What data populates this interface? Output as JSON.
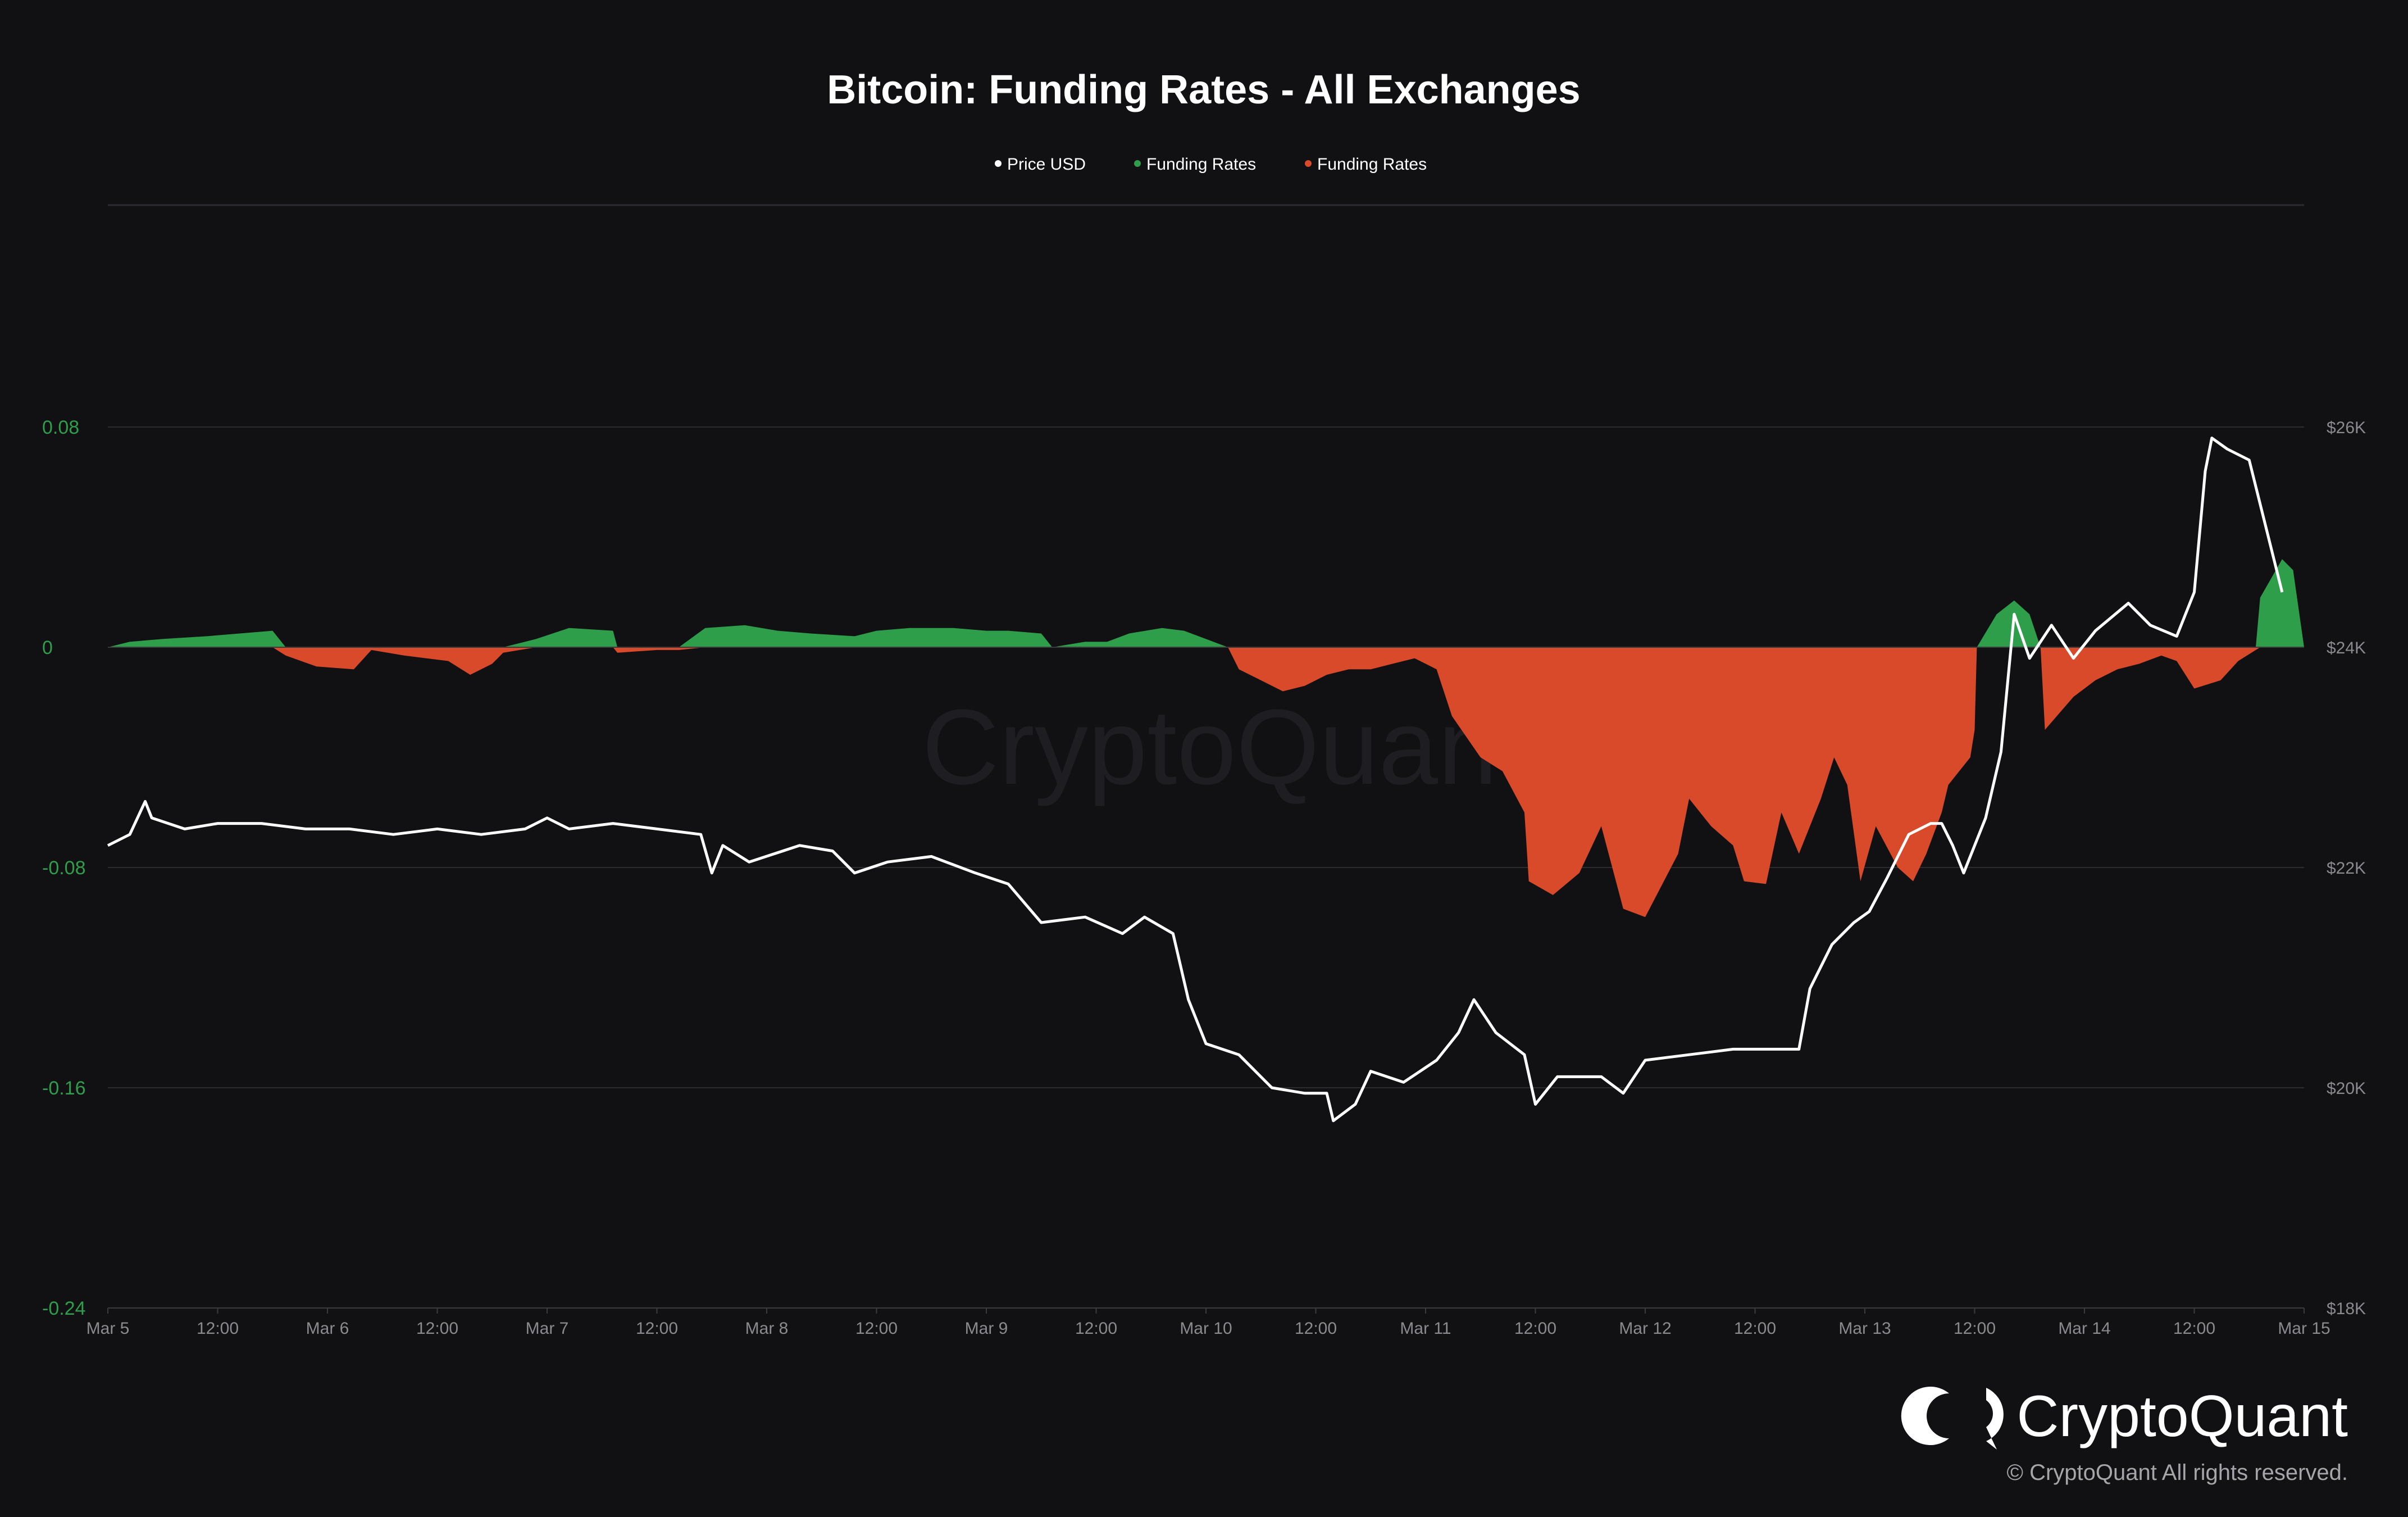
{
  "chart_data": {
    "type": "area",
    "title": "Bitcoin: Funding Rates - All Exchanges",
    "legend": {
      "placement": "top-center",
      "items": [
        {
          "label": "Price USD",
          "color": "#ffffff"
        },
        {
          "label": "Funding Rates",
          "color": "#2f9e4a"
        },
        {
          "label": "Funding Rates",
          "color": "#d94a2a"
        }
      ]
    },
    "x_ticks": [
      "Mar 5",
      "12:00",
      "Mar 6",
      "12:00",
      "Mar 7",
      "12:00",
      "Mar 8",
      "12:00",
      "Mar 9",
      "12:00",
      "Mar 10",
      "12:00",
      "Mar 11",
      "12:00",
      "Mar 12",
      "12:00",
      "Mar 13",
      "12:00",
      "Mar 14",
      "12:00",
      "Mar 15"
    ],
    "xlim_days": [
      5,
      15
    ],
    "y_left": {
      "ticks": [
        "0.08",
        "0",
        "-0.08",
        "-0.16",
        "-0.24"
      ],
      "values": [
        0.08,
        0,
        -0.08,
        -0.16,
        -0.24
      ],
      "ylim": [
        -0.24,
        0.08
      ],
      "color": "#2f9e4a"
    },
    "y_right": {
      "ticks": [
        "$26K",
        "$24K",
        "$22K",
        "$20K",
        "$18K"
      ],
      "values": [
        26000,
        24000,
        22000,
        20000,
        18000
      ],
      "ylim": [
        18000,
        26000
      ]
    },
    "grid": true,
    "colors": {
      "positive": "#2f9e4a",
      "negative": "#d94a2a",
      "price": "#ffffff",
      "background": "#111114",
      "grid": "#2c2c30"
    },
    "series": [
      {
        "name": "Funding Rates",
        "axis": "left",
        "points": [
          [
            5.0,
            0.0
          ],
          [
            5.1,
            0.002
          ],
          [
            5.25,
            0.003
          ],
          [
            5.45,
            0.004
          ],
          [
            5.6,
            0.005
          ],
          [
            5.75,
            0.006
          ],
          [
            5.81,
            -0.003
          ],
          [
            5.95,
            -0.007
          ],
          [
            6.12,
            -0.008
          ],
          [
            6.2,
            -0.001
          ],
          [
            6.35,
            -0.003
          ],
          [
            6.55,
            -0.005
          ],
          [
            6.65,
            -0.01
          ],
          [
            6.75,
            -0.006
          ],
          [
            6.8,
            -0.002
          ],
          [
            6.95,
            0.003
          ],
          [
            7.1,
            0.007
          ],
          [
            7.3,
            0.006
          ],
          [
            7.32,
            -0.002
          ],
          [
            7.5,
            -0.001
          ],
          [
            7.6,
            -0.001
          ],
          [
            7.72,
            0.007
          ],
          [
            7.9,
            0.008
          ],
          [
            8.05,
            0.006
          ],
          [
            8.2,
            0.005
          ],
          [
            8.4,
            0.004
          ],
          [
            8.5,
            0.006
          ],
          [
            8.65,
            0.007
          ],
          [
            8.85,
            0.007
          ],
          [
            9.0,
            0.006
          ],
          [
            9.1,
            0.006
          ],
          [
            9.25,
            0.005
          ],
          [
            9.3,
            0.0
          ],
          [
            9.45,
            0.002
          ],
          [
            9.55,
            0.002
          ],
          [
            9.65,
            0.005
          ],
          [
            9.8,
            0.007
          ],
          [
            9.9,
            0.006
          ],
          [
            10.1,
            0.0
          ],
          [
            10.15,
            -0.008
          ],
          [
            10.25,
            -0.012
          ],
          [
            10.35,
            -0.016
          ],
          [
            10.45,
            -0.014
          ],
          [
            10.55,
            -0.01
          ],
          [
            10.65,
            -0.008
          ],
          [
            10.75,
            -0.008
          ],
          [
            10.85,
            -0.006
          ],
          [
            10.95,
            -0.004
          ],
          [
            11.05,
            -0.008
          ],
          [
            11.12,
            -0.025
          ],
          [
            11.25,
            -0.04
          ],
          [
            11.35,
            -0.045
          ],
          [
            11.45,
            -0.06
          ],
          [
            11.47,
            -0.085
          ],
          [
            11.58,
            -0.09
          ],
          [
            11.7,
            -0.082
          ],
          [
            11.8,
            -0.065
          ],
          [
            11.9,
            -0.095
          ],
          [
            12.0,
            -0.098
          ],
          [
            12.15,
            -0.075
          ],
          [
            12.2,
            -0.055
          ],
          [
            12.3,
            -0.065
          ],
          [
            12.4,
            -0.072
          ],
          [
            12.45,
            -0.085
          ],
          [
            12.55,
            -0.086
          ],
          [
            12.62,
            -0.06
          ],
          [
            12.7,
            -0.075
          ],
          [
            12.8,
            -0.055
          ],
          [
            12.86,
            -0.04
          ],
          [
            12.92,
            -0.05
          ],
          [
            12.98,
            -0.085
          ],
          [
            13.05,
            -0.065
          ],
          [
            13.15,
            -0.08
          ],
          [
            13.22,
            -0.085
          ],
          [
            13.28,
            -0.075
          ],
          [
            13.35,
            -0.06
          ],
          [
            13.38,
            -0.05
          ],
          [
            13.48,
            -0.04
          ],
          [
            13.5,
            -0.03
          ],
          [
            13.51,
            0.0
          ],
          [
            13.6,
            0.012
          ],
          [
            13.68,
            0.017
          ],
          [
            13.75,
            0.012
          ],
          [
            13.8,
            0.0
          ],
          [
            13.82,
            -0.03
          ],
          [
            13.95,
            -0.018
          ],
          [
            14.05,
            -0.012
          ],
          [
            14.15,
            -0.008
          ],
          [
            14.25,
            -0.006
          ],
          [
            14.35,
            -0.003
          ],
          [
            14.42,
            -0.005
          ],
          [
            14.5,
            -0.015
          ],
          [
            14.62,
            -0.012
          ],
          [
            14.7,
            -0.005
          ],
          [
            14.78,
            -0.001
          ],
          [
            14.8,
            0.018
          ],
          [
            14.9,
            0.032
          ],
          [
            14.95,
            0.028
          ],
          [
            15.0,
            0.0
          ]
        ]
      },
      {
        "name": "Price USD",
        "axis": "right",
        "points": [
          [
            5.0,
            22200
          ],
          [
            5.1,
            22300
          ],
          [
            5.17,
            22600
          ],
          [
            5.2,
            22450
          ],
          [
            5.35,
            22350
          ],
          [
            5.5,
            22400
          ],
          [
            5.7,
            22400
          ],
          [
            5.9,
            22350
          ],
          [
            6.1,
            22350
          ],
          [
            6.3,
            22300
          ],
          [
            6.5,
            22350
          ],
          [
            6.7,
            22300
          ],
          [
            6.9,
            22350
          ],
          [
            7.0,
            22450
          ],
          [
            7.1,
            22350
          ],
          [
            7.3,
            22400
          ],
          [
            7.5,
            22350
          ],
          [
            7.7,
            22300
          ],
          [
            7.75,
            21950
          ],
          [
            7.8,
            22200
          ],
          [
            7.92,
            22050
          ],
          [
            8.15,
            22200
          ],
          [
            8.3,
            22150
          ],
          [
            8.4,
            21950
          ],
          [
            8.55,
            22050
          ],
          [
            8.75,
            22100
          ],
          [
            8.95,
            21950
          ],
          [
            9.1,
            21850
          ],
          [
            9.25,
            21500
          ],
          [
            9.45,
            21550
          ],
          [
            9.62,
            21400
          ],
          [
            9.72,
            21550
          ],
          [
            9.85,
            21400
          ],
          [
            9.92,
            20800
          ],
          [
            10.0,
            20400
          ],
          [
            10.15,
            20300
          ],
          [
            10.3,
            20000
          ],
          [
            10.45,
            19950
          ],
          [
            10.55,
            19950
          ],
          [
            10.58,
            19700
          ],
          [
            10.68,
            19850
          ],
          [
            10.75,
            20150
          ],
          [
            10.9,
            20050
          ],
          [
            11.05,
            20250
          ],
          [
            11.15,
            20500
          ],
          [
            11.22,
            20800
          ],
          [
            11.32,
            20500
          ],
          [
            11.45,
            20300
          ],
          [
            11.5,
            19850
          ],
          [
            11.6,
            20100
          ],
          [
            11.8,
            20100
          ],
          [
            11.9,
            19950
          ],
          [
            12.0,
            20250
          ],
          [
            12.2,
            20300
          ],
          [
            12.4,
            20350
          ],
          [
            12.6,
            20350
          ],
          [
            12.7,
            20350
          ],
          [
            12.75,
            20900
          ],
          [
            12.85,
            21300
          ],
          [
            12.95,
            21500
          ],
          [
            13.02,
            21600
          ],
          [
            13.1,
            21900
          ],
          [
            13.2,
            22300
          ],
          [
            13.3,
            22400
          ],
          [
            13.35,
            22400
          ],
          [
            13.4,
            22200
          ],
          [
            13.45,
            21950
          ],
          [
            13.5,
            22200
          ],
          [
            13.55,
            22450
          ],
          [
            13.62,
            23050
          ],
          [
            13.68,
            24300
          ],
          [
            13.75,
            23900
          ],
          [
            13.85,
            24200
          ],
          [
            13.95,
            23900
          ],
          [
            14.05,
            24150
          ],
          [
            14.2,
            24400
          ],
          [
            14.3,
            24200
          ],
          [
            14.42,
            24100
          ],
          [
            14.5,
            24500
          ],
          [
            14.55,
            25600
          ],
          [
            14.58,
            25900
          ],
          [
            14.65,
            25800
          ],
          [
            14.75,
            25700
          ],
          [
            14.85,
            24900
          ],
          [
            14.9,
            24500
          ]
        ]
      }
    ]
  },
  "watermark": "CryptoQuant",
  "branding": {
    "name": "CryptoQuant",
    "copyright": "© CryptoQuant All rights reserved."
  }
}
